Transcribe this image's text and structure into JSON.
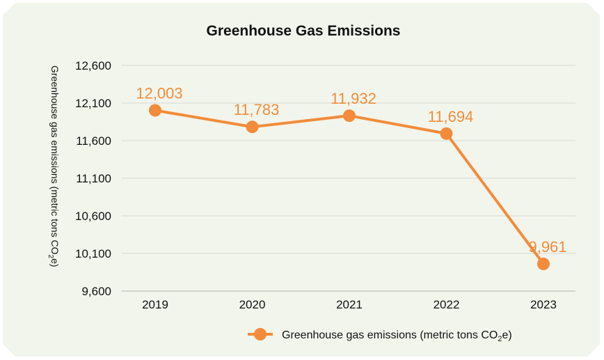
{
  "chart_data": {
    "type": "line",
    "title": "Greenhouse Gas Emissions",
    "ylabel_main": "Greenhouse gas emissions (metric tons CO",
    "ylabel_sub": "2",
    "ylabel_end": "e)",
    "categories": [
      "2019",
      "2020",
      "2021",
      "2022",
      "2023"
    ],
    "series": [
      {
        "name_main": "Greenhouse gas emissions (metric tons CO",
        "name_sub": "2",
        "name_end": "e)",
        "values": [
          12003,
          11783,
          11932,
          11694,
          9961
        ],
        "labels": [
          "12,003",
          "11,783",
          "11,932",
          "11,694",
          "9,961"
        ],
        "color": "#f28c3a"
      }
    ],
    "yticks": [
      "12,600",
      "12,100",
      "11,600",
      "11,100",
      "10,600",
      "10,100",
      "9,600"
    ],
    "ylim": [
      9600,
      12600
    ],
    "grid": true,
    "legend": "bottom"
  }
}
